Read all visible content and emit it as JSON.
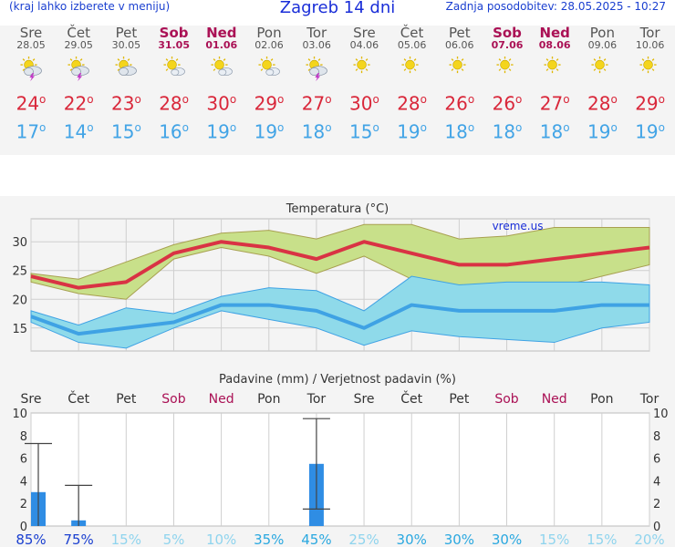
{
  "header": {
    "left_note": "(kraj lahko izberete v meniju)",
    "title": "Zagreb 14 dni",
    "updated": "Zadnja posodobitev: 28.05.2025 - 10:27"
  },
  "days": [
    {
      "name": "Sre",
      "date": "28.05",
      "weekend": false,
      "icon": "sun-cloud-thunder-icon",
      "max": "24",
      "min": "17"
    },
    {
      "name": "Čet",
      "date": "29.05",
      "weekend": false,
      "icon": "sun-cloud-thunder-icon",
      "max": "22",
      "min": "14"
    },
    {
      "name": "Pet",
      "date": "30.05",
      "weekend": false,
      "icon": "sun-cloud-icon",
      "max": "23",
      "min": "15"
    },
    {
      "name": "Sob",
      "date": "31.05",
      "weekend": true,
      "icon": "sun-small-cloud-icon",
      "max": "28",
      "min": "16"
    },
    {
      "name": "Ned",
      "date": "01.06",
      "weekend": true,
      "icon": "sun-small-cloud-icon",
      "max": "30",
      "min": "19"
    },
    {
      "name": "Pon",
      "date": "02.06",
      "weekend": false,
      "icon": "sun-small-cloud-icon",
      "max": "29",
      "min": "19"
    },
    {
      "name": "Tor",
      "date": "03.06",
      "weekend": false,
      "icon": "sun-cloud-thunder-icon",
      "max": "27",
      "min": "18"
    },
    {
      "name": "Sre",
      "date": "04.06",
      "weekend": false,
      "icon": "sun-icon",
      "max": "30",
      "min": "15"
    },
    {
      "name": "Čet",
      "date": "05.06",
      "weekend": false,
      "icon": "sun-icon",
      "max": "28",
      "min": "19"
    },
    {
      "name": "Pet",
      "date": "06.06",
      "weekend": false,
      "icon": "sun-icon",
      "max": "26",
      "min": "18"
    },
    {
      "name": "Sob",
      "date": "07.06",
      "weekend": true,
      "icon": "sun-icon",
      "max": "26",
      "min": "18"
    },
    {
      "name": "Ned",
      "date": "08.06",
      "weekend": true,
      "icon": "sun-icon",
      "max": "27",
      "min": "18"
    },
    {
      "name": "Pon",
      "date": "09.06",
      "weekend": false,
      "icon": "sun-icon",
      "max": "28",
      "min": "19"
    },
    {
      "name": "Tor",
      "date": "10.06",
      "weekend": false,
      "icon": "sun-icon",
      "max": "29",
      "min": "19"
    }
  ],
  "chart_data": [
    {
      "type": "area",
      "title": "Temperatura (°C)",
      "watermark": "vreme.us",
      "ylim": [
        11,
        34
      ],
      "yticks": [
        15,
        20,
        25,
        30
      ],
      "grid": true,
      "series": [
        {
          "values": [
            24,
            22,
            23,
            28,
            30,
            29,
            27,
            30,
            28,
            26,
            26,
            27,
            28,
            29
          ],
          "color": "#d93344"
        },
        {
          "values": [
            24.5,
            23.5,
            26.5,
            29.5,
            31.5,
            32,
            30.5,
            33,
            33,
            30.5,
            31,
            32.5,
            32.5,
            32.5
          ],
          "color": "#c8e08a"
        },
        {
          "values": [
            23,
            21,
            20,
            27,
            29,
            27.5,
            24.5,
            27.5,
            23.5,
            21.5,
            21,
            22,
            24,
            26
          ],
          "color": "#c8e08a"
        },
        {
          "values": [
            17,
            14,
            15,
            16,
            19,
            19,
            18,
            15,
            19,
            18,
            18,
            18,
            19,
            19
          ],
          "color": "#3fa2e4"
        },
        {
          "values": [
            18,
            15.5,
            18.5,
            17.5,
            20.5,
            22,
            21.5,
            18,
            24,
            22.5,
            23,
            23,
            23,
            22.5
          ],
          "color": "#8fdaea"
        },
        {
          "values": [
            16,
            12.5,
            11.5,
            15,
            18,
            16.5,
            15,
            12,
            14.5,
            13.5,
            13,
            12.5,
            15,
            16
          ],
          "color": "#8fdaea"
        }
      ]
    },
    {
      "type": "bar",
      "title": "Padavine (mm) / Verjetnost padavin (%)",
      "ylim": [
        0,
        10
      ],
      "yticks": [
        "0",
        "2",
        "4",
        "6",
        "8",
        "10"
      ],
      "categories": [
        "Sre",
        "Čet",
        "Pet",
        "Sob",
        "Ned",
        "Pon",
        "Tor",
        "Sre",
        "Čet",
        "Pet",
        "Sob",
        "Ned",
        "Pon",
        "Tor"
      ],
      "weekend": [
        false,
        false,
        false,
        true,
        true,
        false,
        false,
        false,
        false,
        false,
        true,
        true,
        false,
        false
      ],
      "values": [
        3,
        0.5,
        0,
        0,
        0,
        0,
        5.5,
        0,
        0,
        0,
        0,
        0,
        0,
        0
      ],
      "err_low": [
        0,
        0,
        0,
        0,
        0,
        0,
        1.5,
        0,
        0,
        0,
        0,
        0,
        0,
        0
      ],
      "err_high": [
        7.3,
        3.6,
        0,
        0,
        0,
        0,
        9.5,
        0,
        0,
        0,
        0,
        0,
        0,
        0
      ],
      "probability": [
        "85%",
        "75%",
        "15%",
        "5%",
        "10%",
        "35%",
        "45%",
        "25%",
        "30%",
        "30%",
        "30%",
        "15%",
        "15%",
        "20%"
      ],
      "bar_color": "#2f8de4"
    }
  ]
}
